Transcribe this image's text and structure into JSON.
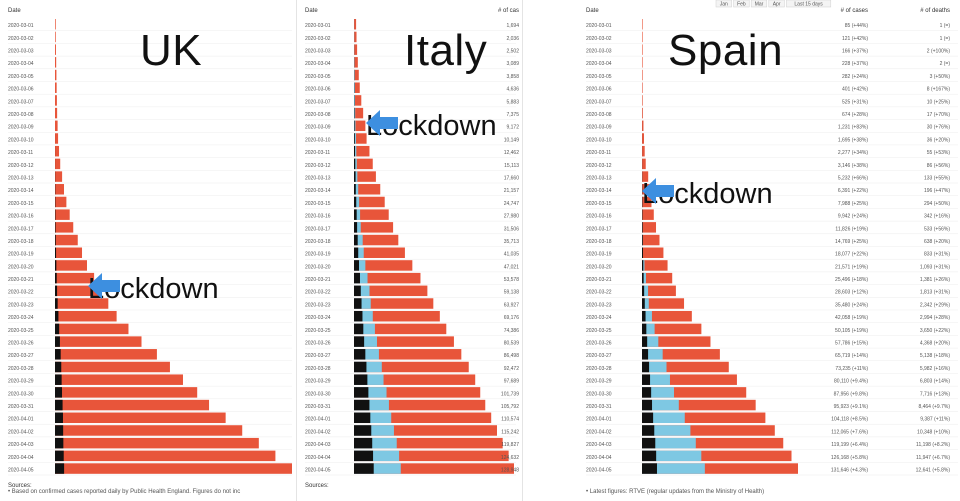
{
  "colors": {
    "cases": "#e8553a",
    "deaths": "#111111",
    "recoveries": "#7ec8e3",
    "text": "#222222",
    "arrow": "#3d8fe0"
  },
  "icons": {
    "lockdown_marker": "arrow-left-icon"
  },
  "panels": [
    {
      "country": "UK",
      "date_header": "Date",
      "lockdown_label": "Lockdown",
      "sources_label": "Sources:",
      "footnote": "Based on confirmed cases reported daily by Public Health England. Figures do not inc"
    },
    {
      "country": "Italy",
      "date_header": "Date",
      "cases_header": "# of cas",
      "lockdown_label": "Lockdown",
      "sources_label": "Sources:"
    },
    {
      "country": "Spain",
      "date_header": "Date",
      "cases_header": "# of cases",
      "deaths_header": "# of deaths",
      "lockdown_label": "Lockdown",
      "footnote": "Latest figures: RTVE (regular updates from the Ministry of Health)",
      "top_controls": [
        "Jan",
        "Feb",
        "Mar",
        "Apr",
        "Last 15 days"
      ]
    }
  ],
  "chart_data": [
    {
      "type": "bar",
      "title": "UK",
      "orientation": "horizontal",
      "lockdown_date": "2020-03-23",
      "categories": [
        "2020-03-01",
        "2020-03-02",
        "2020-03-03",
        "2020-03-04",
        "2020-03-05",
        "2020-03-06",
        "2020-03-07",
        "2020-03-08",
        "2020-03-09",
        "2020-03-10",
        "2020-03-11",
        "2020-03-12",
        "2020-03-13",
        "2020-03-14",
        "2020-03-15",
        "2020-03-16",
        "2020-03-17",
        "2020-03-18",
        "2020-03-19",
        "2020-03-20",
        "2020-03-21",
        "2020-03-22",
        "2020-03-23",
        "2020-03-24",
        "2020-03-25",
        "2020-03-26",
        "2020-03-27",
        "2020-03-28",
        "2020-03-29",
        "2020-03-30",
        "2020-03-31",
        "2020-04-01",
        "2020-04-02",
        "2020-04-03",
        "2020-04-04",
        "2020-04-05"
      ],
      "series": [
        {
          "name": "deaths",
          "values": [
            0,
            0,
            0,
            0,
            0,
            0,
            0,
            0,
            0,
            1,
            2,
            2,
            5,
            8,
            10,
            12,
            15,
            20,
            28,
            35,
            45,
            55,
            70,
            90,
            110,
            130,
            150,
            165,
            175,
            185,
            200,
            210,
            215,
            220,
            230,
            240
          ]
        },
        {
          "name": "cases",
          "values": [
            30,
            30,
            40,
            50,
            60,
            70,
            80,
            90,
            110,
            130,
            170,
            220,
            300,
            380,
            480,
            620,
            770,
            960,
            1140,
            1350,
            1650,
            1930,
            2250,
            2600,
            3100,
            3650,
            4300,
            4850,
            5400,
            6000,
            6500,
            7200,
            7900,
            8600,
            9300,
            10000
          ]
        }
      ]
    },
    {
      "type": "bar",
      "title": "Italy",
      "orientation": "horizontal",
      "lockdown_date": "2020-03-09",
      "categories": [
        "2020-03-01",
        "2020-03-02",
        "2020-03-03",
        "2020-03-04",
        "2020-03-05",
        "2020-03-06",
        "2020-03-07",
        "2020-03-08",
        "2020-03-09",
        "2020-03-10",
        "2020-03-11",
        "2020-03-12",
        "2020-03-13",
        "2020-03-14",
        "2020-03-15",
        "2020-03-16",
        "2020-03-17",
        "2020-03-18",
        "2020-03-19",
        "2020-03-20",
        "2020-03-21",
        "2020-03-22",
        "2020-03-23",
        "2020-03-24",
        "2020-03-25",
        "2020-03-26",
        "2020-03-27",
        "2020-03-28",
        "2020-03-29",
        "2020-03-30",
        "2020-03-31",
        "2020-04-01",
        "2020-04-02",
        "2020-04-03",
        "2020-04-04",
        "2020-04-05"
      ],
      "series": [
        {
          "name": "deaths",
          "values": [
            34,
            52,
            79,
            107,
            148,
            197,
            233,
            366,
            463,
            631,
            827,
            1016,
            1266,
            1441,
            1809,
            2158,
            2503,
            2978,
            3405,
            4032,
            4825,
            5476,
            6077,
            6820,
            7503,
            8165,
            9134,
            10023,
            10779,
            11591,
            12428,
            13155,
            13915,
            14681,
            15362,
            15887
          ]
        },
        {
          "name": "recoveries",
          "values": [
            83,
            149,
            160,
            276,
            414,
            523,
            589,
            622,
            724,
            1004,
            1045,
            1258,
            1439,
            1966,
            2335,
            2749,
            2941,
            4025,
            4440,
            5129,
            6072,
            7024,
            7432,
            8326,
            9362,
            10361,
            10950,
            12384,
            13030,
            14620,
            15729,
            16847,
            18278,
            19758,
            20996,
            21815
          ]
        },
        {
          "name": "cases",
          "values": [
            1694,
            2036,
            2502,
            3089,
            3858,
            4636,
            5883,
            7375,
            9172,
            10149,
            12462,
            15113,
            17660,
            21157,
            24747,
            27980,
            31506,
            35713,
            41035,
            47021,
            53578,
            59138,
            63927,
            69176,
            74386,
            80539,
            86498,
            92472,
            97689,
            101739,
            105792,
            110574,
            115242,
            119827,
            124632,
            128948
          ]
        }
      ]
    },
    {
      "type": "bar",
      "title": "Spain",
      "orientation": "horizontal",
      "lockdown_date": "2020-03-14",
      "categories": [
        "2020-03-01",
        "2020-03-02",
        "2020-03-03",
        "2020-03-04",
        "2020-03-05",
        "2020-03-06",
        "2020-03-07",
        "2020-03-08",
        "2020-03-09",
        "2020-03-10",
        "2020-03-11",
        "2020-03-12",
        "2020-03-13",
        "2020-03-14",
        "2020-03-15",
        "2020-03-16",
        "2020-03-17",
        "2020-03-18",
        "2020-03-19",
        "2020-03-20",
        "2020-03-21",
        "2020-03-22",
        "2020-03-23",
        "2020-03-24",
        "2020-03-25",
        "2020-03-26",
        "2020-03-27",
        "2020-03-28",
        "2020-03-29",
        "2020-03-30",
        "2020-03-31",
        "2020-04-01",
        "2020-04-02",
        "2020-04-03",
        "2020-04-04",
        "2020-04-05"
      ],
      "series": [
        {
          "name": "deaths",
          "values": [
            1,
            1,
            2,
            2,
            3,
            8,
            10,
            17,
            30,
            36,
            55,
            86,
            133,
            196,
            294,
            342,
            533,
            638,
            833,
            1093,
            1381,
            1813,
            2342,
            2994,
            3650,
            4368,
            5138,
            5982,
            6803,
            7716,
            8464,
            9387,
            10348,
            11198,
            11947,
            12641
          ]
        },
        {
          "name": "recoveries",
          "values": [
            0,
            0,
            0,
            0,
            0,
            0,
            0,
            0,
            0,
            0,
            0,
            0,
            0,
            0,
            0,
            0,
            0,
            0,
            0,
            1000,
            2000,
            3300,
            3400,
            5400,
            7000,
            9400,
            12300,
            14700,
            16800,
            19300,
            22600,
            26700,
            30500,
            34200,
            38100,
            40400
          ]
        },
        {
          "name": "cases",
          "values": [
            85,
            121,
            166,
            228,
            282,
            401,
            525,
            674,
            1231,
            1695,
            2277,
            3146,
            5232,
            6391,
            7988,
            9942,
            11826,
            14769,
            18077,
            21571,
            25496,
            28603,
            35480,
            42058,
            50105,
            57786,
            65719,
            73235,
            80110,
            87956,
            95923,
            104118,
            112065,
            119199,
            126168,
            131646
          ]
        }
      ],
      "cases_labels": [
        "85 (+44%)",
        "121 (+42%)",
        "166 (+37%)",
        "228 (+37%)",
        "282 (+24%)",
        "401 (+42%)",
        "525 (+31%)",
        "674 (+28%)",
        "1,231 (+83%)",
        "1,695 (+38%)",
        "2,277 (+34%)",
        "3,146 (+38%)",
        "5,232 (+66%)",
        "6,391 (+22%)",
        "7,988 (+25%)",
        "9,942 (+24%)",
        "11,826 (+19%)",
        "14,769 (+25%)",
        "18,077 (+22%)",
        "21,571 (+19%)",
        "25,496 (+18%)",
        "28,603 (+12%)",
        "35,480 (+24%)",
        "42,058 (+19%)",
        "50,105 (+19%)",
        "57,786 (+15%)",
        "65,719 (+14%)",
        "73,235 (+11%)",
        "80,110 (+9.4%)",
        "87,956 (+9.8%)",
        "95,923 (+9.1%)",
        "104,118 (+8.5%)",
        "112,065 (+7.6%)",
        "119,199 (+6.4%)",
        "126,168 (+5.8%)",
        "131,646 (+4.3%)"
      ],
      "deaths_labels": [
        "1 (=)",
        "1 (=)",
        "2 (+100%)",
        "2 (=)",
        "3 (+50%)",
        "8 (+167%)",
        "10 (+25%)",
        "17 (+70%)",
        "30 (+76%)",
        "36 (+20%)",
        "55 (+53%)",
        "86 (+56%)",
        "133 (+55%)",
        "196 (+47%)",
        "294 (+50%)",
        "342 (+16%)",
        "533 (+56%)",
        "638 (+20%)",
        "833 (+31%)",
        "1,093 (+31%)",
        "1,381 (+26%)",
        "1,813 (+31%)",
        "2,342 (+29%)",
        "2,994 (+28%)",
        "3,650 (+22%)",
        "4,368 (+20%)",
        "5,138 (+18%)",
        "5,982 (+16%)",
        "6,803 (+14%)",
        "7,716 (+13%)",
        "8,464 (+9.7%)",
        "9,387 (+11%)",
        "10,348 (+10%)",
        "11,198 (+8.2%)",
        "11,947 (+6.7%)",
        "12,641 (+5.8%)"
      ]
    }
  ]
}
